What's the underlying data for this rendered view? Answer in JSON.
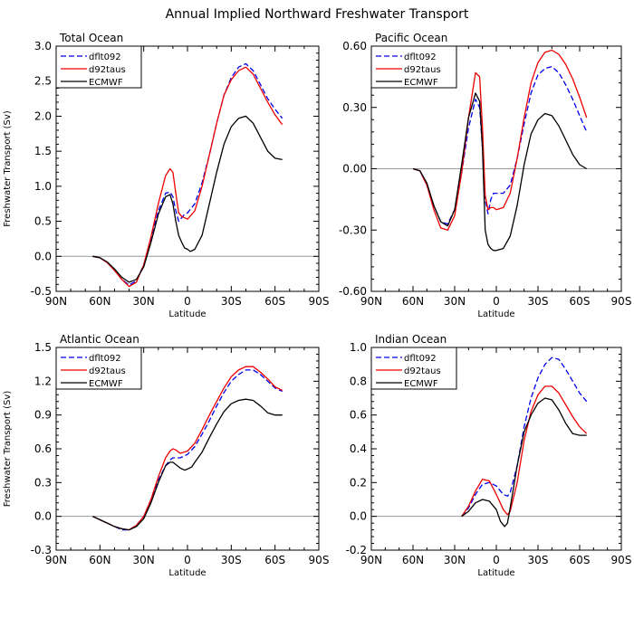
{
  "figure_title": "Annual Implied Northward Freshwater Transport",
  "colors": {
    "dflt092": "#0000ee",
    "d92taus": "#ee0000",
    "ECMWF": "#000000"
  },
  "chart_data": [
    {
      "type": "line",
      "title": "Total Ocean",
      "xlabel": "Latitude",
      "ylabel": "Freshwater Transport (Sv)",
      "x_ticks": [
        "90N",
        "60N",
        "30N",
        "0",
        "30S",
        "60S",
        "90S"
      ],
      "xlim": [
        -90,
        90
      ],
      "ylim": [
        -0.5,
        3.0
      ],
      "y_ticks": [
        "-0.5",
        "0.0",
        "0.5",
        "1.0",
        "1.5",
        "2.0",
        "2.5",
        "3.0"
      ],
      "zero_line": true,
      "legend_position": "top-left",
      "series": [
        {
          "name": "dflt092",
          "style": "dashed",
          "color": "#0000ee",
          "x": [
            -65,
            -60,
            -55,
            -50,
            -45,
            -40,
            -35,
            -30,
            -25,
            -20,
            -15,
            -12,
            -10,
            -8,
            -6,
            -4,
            -2,
            0,
            5,
            10,
            15,
            20,
            25,
            30,
            35,
            40,
            45,
            50,
            55,
            60,
            65
          ],
          "y": [
            0.0,
            -0.02,
            -0.09,
            -0.2,
            -0.33,
            -0.41,
            -0.35,
            -0.12,
            0.25,
            0.65,
            0.9,
            0.92,
            0.85,
            0.65,
            0.5,
            0.55,
            0.6,
            0.62,
            0.75,
            1.05,
            1.45,
            1.9,
            2.3,
            2.55,
            2.7,
            2.75,
            2.65,
            2.45,
            2.25,
            2.1,
            1.97
          ]
        },
        {
          "name": "d92taus",
          "style": "solid",
          "color": "#ee0000",
          "x": [
            -65,
            -60,
            -55,
            -50,
            -45,
            -40,
            -35,
            -30,
            -25,
            -20,
            -15,
            -12,
            -10,
            -8,
            -6,
            -4,
            -2,
            0,
            5,
            10,
            15,
            20,
            25,
            30,
            35,
            40,
            45,
            50,
            55,
            60,
            65
          ],
          "y": [
            0.0,
            -0.02,
            -0.09,
            -0.2,
            -0.33,
            -0.43,
            -0.37,
            -0.12,
            0.28,
            0.75,
            1.15,
            1.25,
            1.2,
            0.9,
            0.62,
            0.57,
            0.55,
            0.53,
            0.65,
            1.0,
            1.45,
            1.9,
            2.3,
            2.52,
            2.65,
            2.7,
            2.6,
            2.4,
            2.2,
            2.02,
            1.88
          ]
        },
        {
          "name": "ECMWF",
          "style": "solid",
          "color": "#000000",
          "x": [
            -65,
            -60,
            -55,
            -50,
            -45,
            -40,
            -35,
            -30,
            -25,
            -20,
            -15,
            -12,
            -10,
            -8,
            -6,
            -4,
            -2,
            0,
            2,
            5,
            10,
            15,
            20,
            25,
            30,
            35,
            40,
            45,
            50,
            55,
            60,
            65
          ],
          "y": [
            0.0,
            -0.02,
            -0.08,
            -0.18,
            -0.3,
            -0.37,
            -0.33,
            -0.15,
            0.2,
            0.6,
            0.85,
            0.88,
            0.75,
            0.5,
            0.3,
            0.2,
            0.12,
            0.1,
            0.07,
            0.1,
            0.3,
            0.75,
            1.2,
            1.6,
            1.85,
            1.97,
            2.0,
            1.9,
            1.7,
            1.5,
            1.4,
            1.38
          ]
        }
      ]
    },
    {
      "type": "line",
      "title": "Pacific Ocean",
      "xlabel": "Latitude",
      "ylabel": "",
      "x_ticks": [
        "90N",
        "60N",
        "30N",
        "0",
        "30S",
        "60S",
        "90S"
      ],
      "xlim": [
        -90,
        90
      ],
      "ylim": [
        -0.6,
        0.6
      ],
      "y_ticks": [
        "-0.60",
        "-0.30",
        "0.00",
        "0.30",
        "0.60"
      ],
      "zero_line": true,
      "legend_position": "top-left",
      "series": [
        {
          "name": "dflt092",
          "style": "dashed",
          "color": "#0000ee",
          "x": [
            -60,
            -55,
            -50,
            -45,
            -40,
            -35,
            -30,
            -25,
            -20,
            -15,
            -12,
            -10,
            -8,
            -6,
            -4,
            -2,
            0,
            5,
            10,
            15,
            20,
            25,
            30,
            35,
            40,
            45,
            50,
            55,
            60,
            65
          ],
          "y": [
            0.0,
            -0.01,
            -0.08,
            -0.18,
            -0.26,
            -0.27,
            -0.2,
            -0.02,
            0.2,
            0.34,
            0.3,
            0.1,
            -0.15,
            -0.22,
            -0.15,
            -0.12,
            -0.12,
            -0.12,
            -0.08,
            0.05,
            0.22,
            0.37,
            0.46,
            0.49,
            0.5,
            0.47,
            0.41,
            0.34,
            0.26,
            0.18
          ]
        },
        {
          "name": "d92taus",
          "style": "solid",
          "color": "#ee0000",
          "x": [
            -60,
            -55,
            -50,
            -45,
            -40,
            -35,
            -30,
            -25,
            -20,
            -15,
            -12,
            -10,
            -8,
            -6,
            -4,
            -2,
            0,
            5,
            10,
            15,
            20,
            25,
            30,
            35,
            40,
            45,
            50,
            55,
            60,
            65
          ],
          "y": [
            0.0,
            -0.01,
            -0.08,
            -0.2,
            -0.29,
            -0.3,
            -0.23,
            -0.02,
            0.25,
            0.47,
            0.45,
            0.2,
            -0.13,
            -0.2,
            -0.19,
            -0.19,
            -0.2,
            -0.19,
            -0.12,
            0.05,
            0.25,
            0.42,
            0.52,
            0.57,
            0.58,
            0.56,
            0.51,
            0.44,
            0.35,
            0.25
          ]
        },
        {
          "name": "ECMWF",
          "style": "solid",
          "color": "#000000",
          "x": [
            -60,
            -55,
            -50,
            -45,
            -40,
            -35,
            -30,
            -25,
            -20,
            -15,
            -12,
            -10,
            -8,
            -6,
            -4,
            -2,
            0,
            5,
            10,
            15,
            20,
            25,
            30,
            35,
            40,
            45,
            50,
            55,
            60,
            65
          ],
          "y": [
            0.0,
            -0.01,
            -0.07,
            -0.18,
            -0.26,
            -0.28,
            -0.2,
            0.02,
            0.25,
            0.37,
            0.33,
            0.1,
            -0.3,
            -0.37,
            -0.39,
            -0.4,
            -0.4,
            -0.39,
            -0.33,
            -0.18,
            0.02,
            0.17,
            0.24,
            0.27,
            0.26,
            0.21,
            0.14,
            0.07,
            0.02,
            0.0
          ]
        }
      ]
    },
    {
      "type": "line",
      "title": "Atlantic Ocean",
      "xlabel": "Latitude",
      "ylabel": "Freshwater Transport (Sv)",
      "x_ticks": [
        "90N",
        "60N",
        "30N",
        "0",
        "30S",
        "60S",
        "90S"
      ],
      "xlim": [
        -90,
        90
      ],
      "ylim": [
        -0.3,
        1.5
      ],
      "y_ticks": [
        "-0.3",
        "0.0",
        "0.3",
        "0.6",
        "0.9",
        "1.2",
        "1.5"
      ],
      "zero_line": true,
      "legend_position": "top-left",
      "series": [
        {
          "name": "dflt092",
          "style": "dashed",
          "color": "#0000ee",
          "x": [
            -65,
            -60,
            -55,
            -50,
            -45,
            -40,
            -35,
            -30,
            -25,
            -20,
            -15,
            -12,
            -10,
            -8,
            -5,
            0,
            5,
            10,
            15,
            20,
            25,
            30,
            35,
            40,
            45,
            50,
            55,
            60,
            65
          ],
          "y": [
            0.0,
            -0.03,
            -0.06,
            -0.09,
            -0.12,
            -0.12,
            -0.08,
            0.0,
            0.15,
            0.32,
            0.45,
            0.5,
            0.52,
            0.52,
            0.52,
            0.55,
            0.62,
            0.73,
            0.85,
            0.98,
            1.1,
            1.2,
            1.26,
            1.3,
            1.3,
            1.26,
            1.2,
            1.14,
            1.11
          ]
        },
        {
          "name": "d92taus",
          "style": "solid",
          "color": "#ee0000",
          "x": [
            -65,
            -60,
            -55,
            -50,
            -45,
            -40,
            -35,
            -30,
            -25,
            -20,
            -15,
            -12,
            -10,
            -8,
            -5,
            0,
            5,
            10,
            15,
            20,
            25,
            30,
            35,
            40,
            45,
            50,
            55,
            60,
            65
          ],
          "y": [
            0.0,
            -0.03,
            -0.06,
            -0.09,
            -0.11,
            -0.12,
            -0.08,
            0.0,
            0.15,
            0.35,
            0.52,
            0.58,
            0.6,
            0.59,
            0.56,
            0.58,
            0.65,
            0.77,
            0.9,
            1.02,
            1.14,
            1.24,
            1.3,
            1.33,
            1.33,
            1.28,
            1.22,
            1.15,
            1.12
          ]
        },
        {
          "name": "ECMWF",
          "style": "solid",
          "color": "#000000",
          "x": [
            -65,
            -60,
            -55,
            -50,
            -45,
            -40,
            -35,
            -30,
            -25,
            -20,
            -15,
            -12,
            -10,
            -8,
            -5,
            -2,
            0,
            3,
            5,
            10,
            15,
            20,
            25,
            30,
            35,
            40,
            45,
            50,
            55,
            60,
            65
          ],
          "y": [
            0.0,
            -0.03,
            -0.06,
            -0.09,
            -0.11,
            -0.12,
            -0.09,
            -0.02,
            0.12,
            0.3,
            0.45,
            0.48,
            0.48,
            0.46,
            0.43,
            0.41,
            0.42,
            0.44,
            0.48,
            0.57,
            0.7,
            0.82,
            0.93,
            1.0,
            1.03,
            1.04,
            1.03,
            0.98,
            0.92,
            0.9,
            0.9
          ]
        }
      ]
    },
    {
      "type": "line",
      "title": "Indian Ocean",
      "xlabel": "Latitude",
      "ylabel": "",
      "x_ticks": [
        "90N",
        "60N",
        "30N",
        "0",
        "30S",
        "60S",
        "90S"
      ],
      "xlim": [
        -90,
        90
      ],
      "ylim": [
        -0.2,
        1.0
      ],
      "y_ticks": [
        "-0.2",
        "0.0",
        "0.2",
        "0.4",
        "0.6",
        "0.8",
        "1.0"
      ],
      "zero_line": true,
      "legend_position": "top-left",
      "series": [
        {
          "name": "dflt092",
          "style": "dashed",
          "color": "#0000ee",
          "x": [
            -25,
            -20,
            -15,
            -10,
            -5,
            0,
            5,
            8,
            10,
            15,
            20,
            25,
            30,
            35,
            40,
            45,
            50,
            55,
            60,
            65
          ],
          "y": [
            0.0,
            0.05,
            0.13,
            0.19,
            0.2,
            0.18,
            0.13,
            0.12,
            0.14,
            0.3,
            0.53,
            0.7,
            0.82,
            0.9,
            0.94,
            0.93,
            0.87,
            0.8,
            0.73,
            0.68
          ]
        },
        {
          "name": "d92taus",
          "style": "solid",
          "color": "#ee0000",
          "x": [
            -25,
            -20,
            -15,
            -10,
            -5,
            0,
            5,
            8,
            10,
            15,
            20,
            25,
            30,
            35,
            40,
            45,
            50,
            55,
            60,
            65
          ],
          "y": [
            0.0,
            0.06,
            0.15,
            0.22,
            0.21,
            0.13,
            0.04,
            0.01,
            0.03,
            0.2,
            0.45,
            0.62,
            0.72,
            0.77,
            0.77,
            0.73,
            0.66,
            0.59,
            0.53,
            0.49
          ]
        },
        {
          "name": "ECMWF",
          "style": "solid",
          "color": "#000000",
          "x": [
            -25,
            -20,
            -15,
            -10,
            -5,
            0,
            3,
            6,
            8,
            10,
            15,
            20,
            25,
            30,
            35,
            40,
            45,
            50,
            55,
            60,
            65
          ],
          "y": [
            0.0,
            0.03,
            0.08,
            0.1,
            0.09,
            0.04,
            -0.03,
            -0.06,
            -0.04,
            0.05,
            0.3,
            0.5,
            0.6,
            0.67,
            0.7,
            0.69,
            0.63,
            0.55,
            0.49,
            0.48,
            0.48
          ]
        }
      ]
    }
  ]
}
